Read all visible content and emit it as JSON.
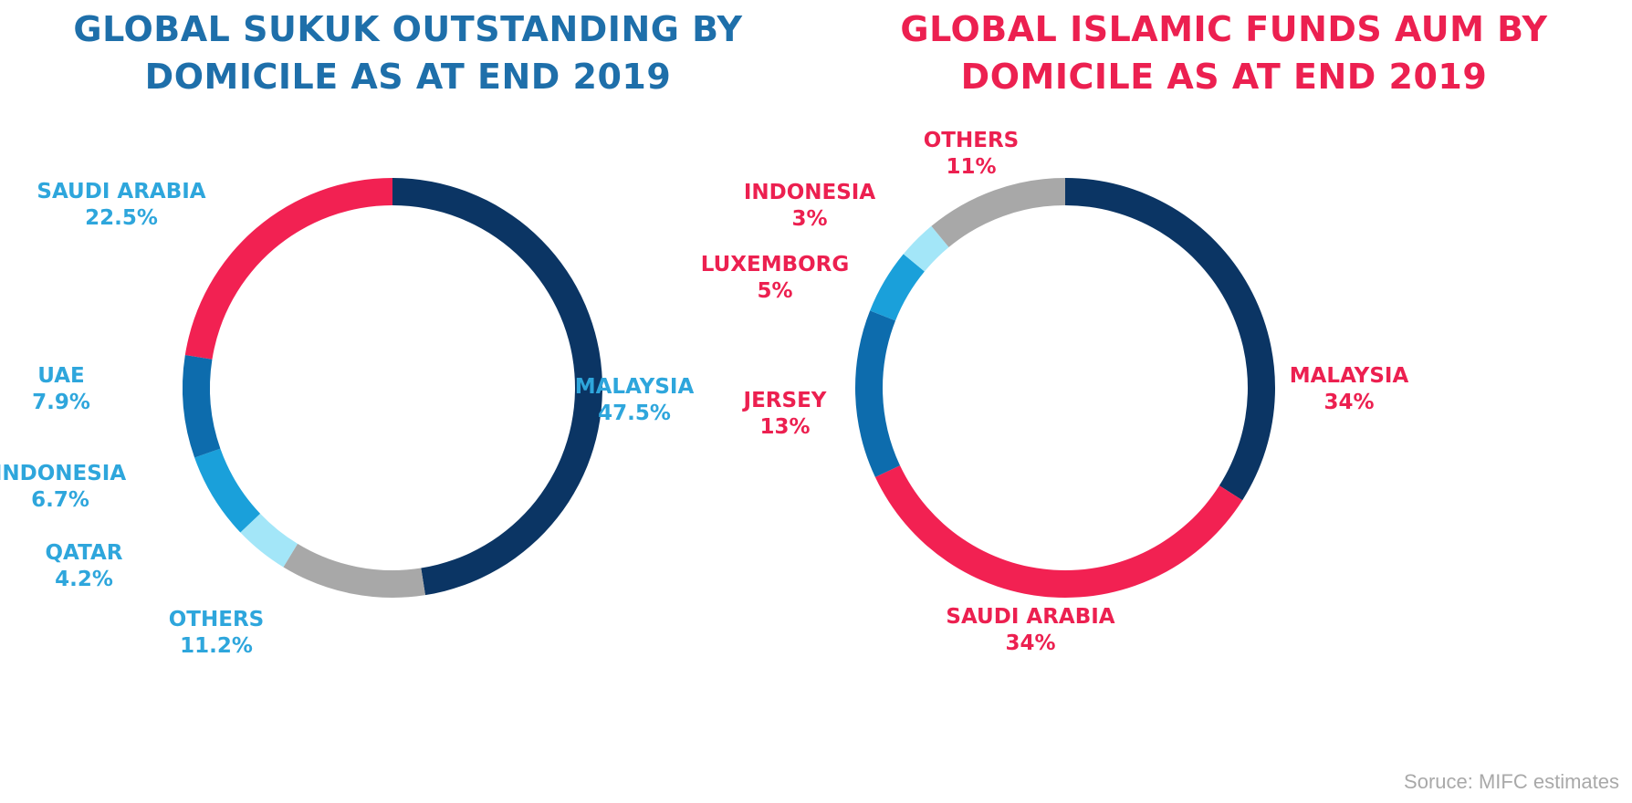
{
  "chart_data": [
    {
      "type": "donut",
      "title_lines": [
        "GLOBAL SUKUK OUTSTANDING BY",
        "DOMICILE AS AT END 2019"
      ],
      "title_color": "#1e6faa",
      "label_color": "#2ea6dc",
      "categories": [
        "MALAYSIA",
        "OTHERS",
        "QATAR",
        "INDONESIA",
        "UAE",
        "SAUDI ARABIA"
      ],
      "value_labels": [
        "47.5%",
        "11.2%",
        "4.2%",
        "6.7%",
        "7.9%",
        "22.5%"
      ],
      "values": [
        47.5,
        11.2,
        4.2,
        6.7,
        7.9,
        22.5
      ],
      "colors": [
        "#0b3564",
        "#a8a8a8",
        "#a3e6f8",
        "#1aa0da",
        "#0d6cad",
        "#f22152"
      ]
    },
    {
      "type": "donut",
      "title_lines": [
        "GLOBAL ISLAMIC FUNDS AUM BY",
        "DOMICILE AS AT END 2019"
      ],
      "title_color": "#ec2050",
      "label_color": "#ec2050",
      "categories": [
        "MALAYSIA",
        "SAUDI ARABIA",
        "JERSEY",
        "LUXEMBORG",
        "INDONESIA",
        "OTHERS"
      ],
      "value_labels": [
        "34%",
        "34%",
        "13%",
        "5%",
        "3%",
        "11%"
      ],
      "values": [
        34,
        34,
        13,
        5,
        3,
        11
      ],
      "colors": [
        "#0b3564",
        "#f22152",
        "#0d6cad",
        "#1aa0da",
        "#a3e6f8",
        "#a8a8a8"
      ]
    }
  ],
  "source": "Soruce: MIFC estimates"
}
